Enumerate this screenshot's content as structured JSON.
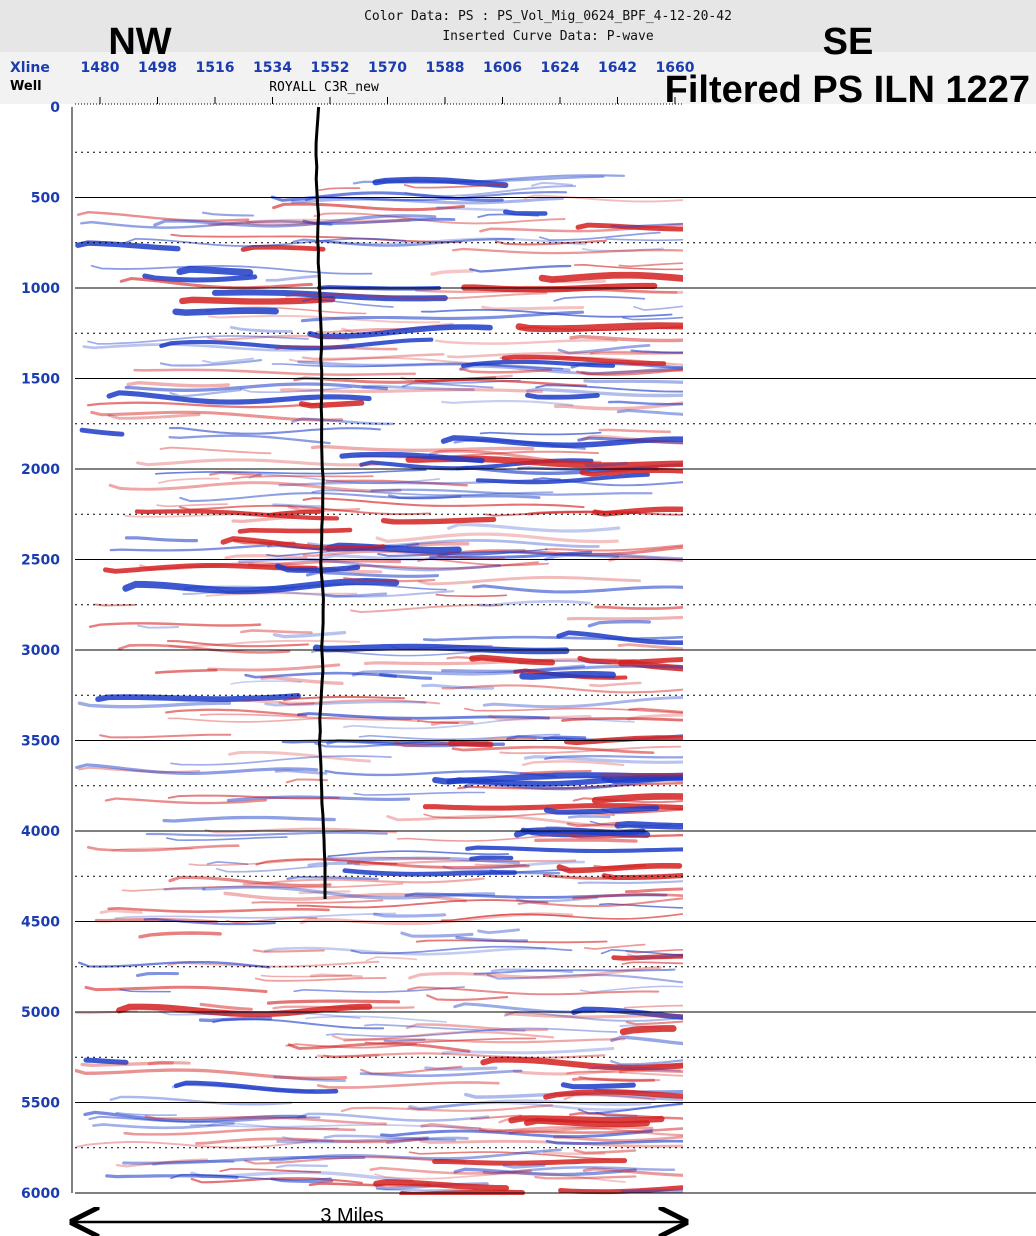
{
  "header": {
    "color_data": "Color Data: PS : PS_Vol_Mig_0624_BPF_4-12-20-42",
    "curve_data": "Inserted Curve Data: P-wave"
  },
  "labels": {
    "left": "NW",
    "right": "SE",
    "title": "Filtered PS ILN 1227",
    "scale": "3 Miles"
  },
  "xline": {
    "label": "Xline",
    "ticks": [
      1480,
      1498,
      1516,
      1534,
      1552,
      1570,
      1588,
      1606,
      1624,
      1642,
      1660
    ]
  },
  "well": {
    "label": "Well",
    "name": "ROYALL C3R_new"
  },
  "time_axis": {
    "ticks": [
      0,
      500,
      1000,
      1500,
      2000,
      2500,
      3000,
      3500,
      4000,
      4500,
      5000,
      5500,
      6000
    ]
  }
}
